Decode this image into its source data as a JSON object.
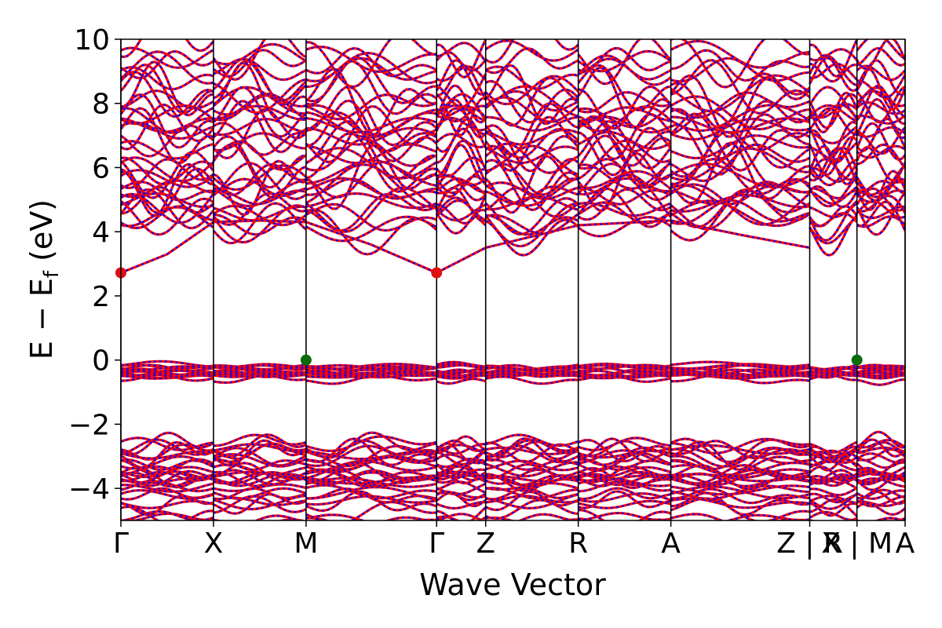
{
  "chart_data": {
    "type": "line",
    "xlabel": "Wave Vector",
    "ylabel": "E − E",
    "ylabel_sub": "f",
    "ylabel_unit": " (eV)",
    "ylim": [
      -5,
      10
    ],
    "yticks": [
      {
        "value": 10,
        "label": "10"
      },
      {
        "value": 8,
        "label": "8"
      },
      {
        "value": 6,
        "label": "6"
      },
      {
        "value": 4,
        "label": "4"
      },
      {
        "value": 2,
        "label": "2"
      },
      {
        "value": 0,
        "label": "0"
      },
      {
        "value": -2,
        "label": "−2"
      },
      {
        "value": -4,
        "label": "−4"
      }
    ],
    "xlim": [
      0,
      8.47
    ],
    "kpoints": [
      {
        "label": "Γ",
        "x": 0.0
      },
      {
        "label": "X",
        "x": 1.0
      },
      {
        "label": "M",
        "x": 2.0
      },
      {
        "label": "Γ",
        "x": 3.41
      },
      {
        "label": "Z",
        "x": 3.94
      },
      {
        "label": "R",
        "x": 4.94
      },
      {
        "label": "A",
        "x": 5.94
      },
      {
        "label": "Z | R",
        "x": 7.44
      },
      {
        "label": "X | M",
        "x": 7.95
      },
      {
        "label": "A",
        "x": 8.47
      }
    ],
    "series": [
      {
        "color": "#ff0000",
        "style": "solid"
      },
      {
        "color": "#0000ff",
        "style": "dashed"
      }
    ],
    "markers": [
      {
        "x": 0.0,
        "y": 2.72,
        "color": "#dd1111",
        "kind": "cbm"
      },
      {
        "x": 3.41,
        "y": 2.72,
        "color": "#dd1111",
        "kind": "cbm"
      },
      {
        "x": 2.0,
        "y": 0.0,
        "color": "#0a6b0a",
        "kind": "vbm"
      },
      {
        "x": 7.95,
        "y": 0.0,
        "color": "#0a6b0a",
        "kind": "vbm"
      }
    ],
    "bands": {
      "conduction_lowest": [
        [
          0.0,
          2.72
        ],
        [
          0.5,
          3.3
        ],
        [
          1.0,
          4.3
        ],
        [
          1.5,
          4.35
        ],
        [
          2.0,
          4.3
        ],
        [
          2.7,
          3.6
        ],
        [
          3.41,
          2.72
        ],
        [
          3.94,
          3.5
        ],
        [
          4.94,
          4.2
        ],
        [
          5.94,
          4.35
        ],
        [
          6.7,
          3.9
        ],
        [
          7.44,
          3.5
        ]
      ]
    }
  }
}
